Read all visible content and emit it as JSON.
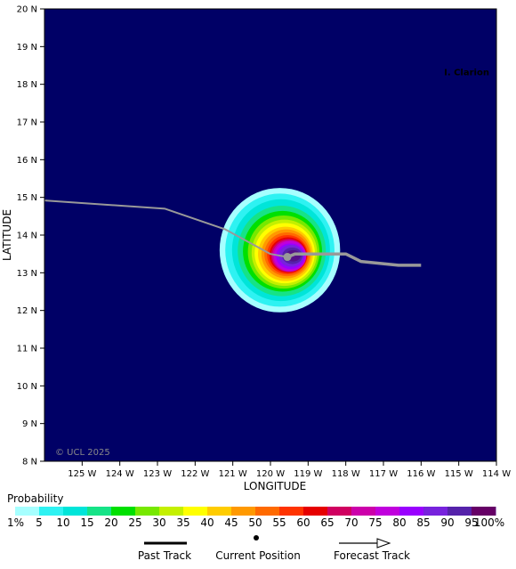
{
  "map": {
    "background_color": "#000066",
    "lat_range": [
      8,
      20
    ],
    "lon_range": [
      -126,
      -114
    ],
    "lat_ticks": [
      {
        "value": 20,
        "label": "20 N"
      },
      {
        "value": 19,
        "label": "19 N"
      },
      {
        "value": 18,
        "label": "18 N"
      },
      {
        "value": 17,
        "label": "17 N"
      },
      {
        "value": 16,
        "label": "16 N"
      },
      {
        "value": 15,
        "label": "15 N"
      },
      {
        "value": 14,
        "label": "14 N"
      },
      {
        "value": 13,
        "label": "13 N"
      },
      {
        "value": 12,
        "label": "12 N"
      },
      {
        "value": 11,
        "label": "11 N"
      },
      {
        "value": 10,
        "label": "10 N"
      },
      {
        "value": 9,
        "label": "9 N"
      },
      {
        "value": 8,
        "label": "8 N"
      }
    ],
    "lon_ticks": [
      {
        "value": -125,
        "label": "125 W"
      },
      {
        "value": -124,
        "label": "124 W"
      },
      {
        "value": -123,
        "label": "123 W"
      },
      {
        "value": -122,
        "label": "122 W"
      },
      {
        "value": -121,
        "label": "121 W"
      },
      {
        "value": -120,
        "label": "120 W"
      },
      {
        "value": -119,
        "label": "119 W"
      },
      {
        "value": -118,
        "label": "118 W"
      },
      {
        "value": -117,
        "label": "117 W"
      },
      {
        "value": -116,
        "label": "116 W"
      },
      {
        "value": -115,
        "label": "115 W"
      },
      {
        "value": -114,
        "label": "114 W"
      }
    ],
    "ylabel": "LATITUDE",
    "xlabel": "LONGITUDE",
    "island": {
      "label": "I. Clarion",
      "lat": 18.33,
      "lon": -114.73,
      "color": "#22cc22"
    },
    "copyright": "© UCL 2025",
    "past_track": [
      {
        "lon": -126.0,
        "lat": 14.92
      },
      {
        "lon": -122.8,
        "lat": 14.7
      },
      {
        "lon": -121.2,
        "lat": 14.15
      },
      {
        "lon": -120.0,
        "lat": 13.5
      },
      {
        "lon": -119.55,
        "lat": 13.42
      }
    ],
    "forecast_track": [
      {
        "lon": -119.55,
        "lat": 13.42
      },
      {
        "lon": -119.35,
        "lat": 13.5
      },
      {
        "lon": -118.0,
        "lat": 13.5
      },
      {
        "lon": -117.6,
        "lat": 13.3
      },
      {
        "lon": -116.6,
        "lat": 13.2
      },
      {
        "lon": -116.0,
        "lat": 13.2
      }
    ],
    "track_color": "#999999",
    "current_position": {
      "lon": -119.55,
      "lat": 13.42
    },
    "probability_field": {
      "levels": [
        {
          "pct": 1,
          "lon": -119.75,
          "lat": 13.6,
          "rx_deg": 1.6,
          "ry_deg": 1.65
        },
        {
          "pct": 5,
          "lon": -119.75,
          "lat": 13.6,
          "rx_deg": 1.45,
          "ry_deg": 1.5
        },
        {
          "pct": 10,
          "lon": -119.72,
          "lat": 13.6,
          "rx_deg": 1.3,
          "ry_deg": 1.35
        },
        {
          "pct": 15,
          "lon": -119.7,
          "lat": 13.58,
          "rx_deg": 1.17,
          "ry_deg": 1.2
        },
        {
          "pct": 20,
          "lon": -119.68,
          "lat": 13.57,
          "rx_deg": 1.05,
          "ry_deg": 1.07
        },
        {
          "pct": 25,
          "lon": -119.65,
          "lat": 13.55,
          "rx_deg": 0.95,
          "ry_deg": 0.97
        },
        {
          "pct": 30,
          "lon": -119.63,
          "lat": 13.53,
          "rx_deg": 0.87,
          "ry_deg": 0.88
        },
        {
          "pct": 35,
          "lon": -119.62,
          "lat": 13.52,
          "rx_deg": 0.8,
          "ry_deg": 0.8
        },
        {
          "pct": 40,
          "lon": -119.6,
          "lat": 13.5,
          "rx_deg": 0.73,
          "ry_deg": 0.72
        },
        {
          "pct": 45,
          "lon": -119.58,
          "lat": 13.5,
          "rx_deg": 0.66,
          "ry_deg": 0.65
        },
        {
          "pct": 50,
          "lon": -119.56,
          "lat": 13.49,
          "rx_deg": 0.6,
          "ry_deg": 0.58
        },
        {
          "pct": 55,
          "lon": -119.55,
          "lat": 13.48,
          "rx_deg": 0.54,
          "ry_deg": 0.52
        },
        {
          "pct": 60,
          "lon": -119.53,
          "lat": 13.47,
          "rx_deg": 0.5,
          "ry_deg": 0.47
        },
        {
          "pct": 65,
          "lon": -119.52,
          "lat": 13.46,
          "rx_deg": 0.47,
          "ry_deg": 0.44
        },
        {
          "pct": 70,
          "lon": -119.5,
          "lat": 13.45,
          "rx_deg": 0.45,
          "ry_deg": 0.42
        },
        {
          "pct": 75,
          "lon": -119.48,
          "lat": 13.44,
          "rx_deg": 0.43,
          "ry_deg": 0.4
        },
        {
          "pct": 80,
          "lon": -119.47,
          "lat": 13.44,
          "rx_deg": 0.38,
          "ry_deg": 0.34
        },
        {
          "pct": 85,
          "lon": -119.45,
          "lat": 13.45,
          "rx_deg": 0.33,
          "ry_deg": 0.29
        },
        {
          "pct": 90,
          "lon": -119.42,
          "lat": 13.45,
          "rx_deg": 0.27,
          "ry_deg": 0.22
        },
        {
          "pct": 95,
          "lon": -119.4,
          "lat": 13.45,
          "rx_deg": 0.2,
          "ry_deg": 0.15
        }
      ]
    }
  },
  "legend": {
    "title": "Probability",
    "items": [
      {
        "label": "1%",
        "color": "#a6ffff"
      },
      {
        "label": "5",
        "color": "#2ef2f2"
      },
      {
        "label": "10",
        "color": "#00e5d9"
      },
      {
        "label": "15",
        "color": "#16e387"
      },
      {
        "label": "20",
        "color": "#00e000"
      },
      {
        "label": "25",
        "color": "#77e800"
      },
      {
        "label": "30",
        "color": "#c4f000"
      },
      {
        "label": "35",
        "color": "#ffff00"
      },
      {
        "label": "40",
        "color": "#ffcc00"
      },
      {
        "label": "45",
        "color": "#ff9900"
      },
      {
        "label": "50",
        "color": "#ff6a00"
      },
      {
        "label": "55",
        "color": "#ff3300"
      },
      {
        "label": "60",
        "color": "#e60000"
      },
      {
        "label": "65",
        "color": "#d00060"
      },
      {
        "label": "70",
        "color": "#cc00aa"
      },
      {
        "label": "75",
        "color": "#c000dd"
      },
      {
        "label": "80",
        "color": "#9900ff"
      },
      {
        "label": "85",
        "color": "#7722dd"
      },
      {
        "label": "90",
        "color": "#5522aa"
      },
      {
        "label": "95",
        "color": "#551188"
      },
      {
        "label": "100%",
        "color": "#660066"
      }
    ]
  },
  "key": {
    "past_track_label": "Past Track",
    "current_position_label": "Current Position",
    "forecast_track_label": "Forecast Track"
  }
}
